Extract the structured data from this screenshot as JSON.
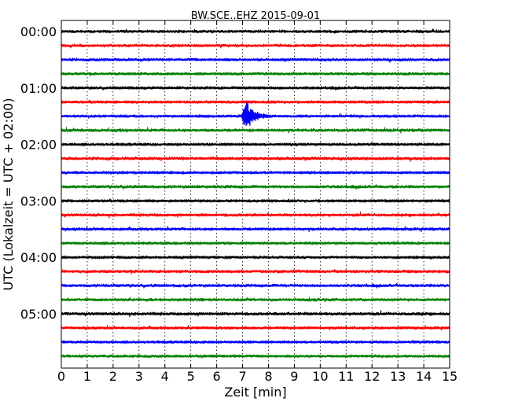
{
  "chart_data": {
    "type": "line",
    "title": "BW.SCE..EHZ 2015-09-01",
    "xlabel": "Zeit  [min]",
    "ylabel": "UTC (Lokalzeit = UTC + 02:00)",
    "xlim": [
      0,
      15
    ],
    "x_ticks": [
      "0",
      "1",
      "2",
      "3",
      "4",
      "5",
      "6",
      "7",
      "8",
      "9",
      "10",
      "11",
      "12",
      "13",
      "14",
      "15"
    ],
    "y_ticks": [
      "00:00",
      "01:00",
      "02:00",
      "03:00",
      "04:00",
      "05:00"
    ],
    "grid": "vertical-dotted",
    "trace_interval_minutes": 15,
    "trace_count": 24,
    "trace_colors": [
      "#000000",
      "#ff0000",
      "#0000ff",
      "#008000"
    ],
    "event": {
      "trace": "01:30",
      "minute": 7.0
    }
  }
}
